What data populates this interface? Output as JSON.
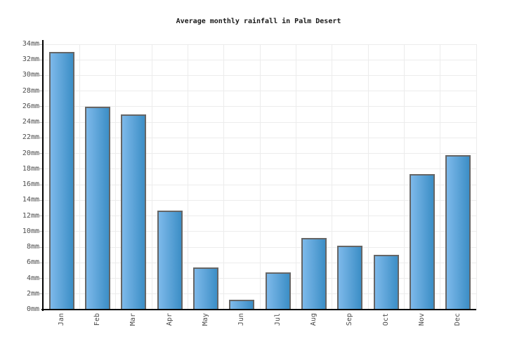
{
  "chart_data": {
    "type": "bar",
    "title": "Average monthly rainfall in Palm Desert",
    "categories": [
      "Jan",
      "Feb",
      "Mar",
      "Apr",
      "May",
      "Jun",
      "Jul",
      "Aug",
      "Sep",
      "Oct",
      "Nov",
      "Dec"
    ],
    "values": [
      33,
      26,
      25,
      12.7,
      5.4,
      1.3,
      4.8,
      9.2,
      8.2,
      7.0,
      17.4,
      19.8
    ],
    "unit": "mm",
    "xlabel": "",
    "ylabel": "",
    "ylim": [
      0,
      34
    ],
    "ytick_step": 2,
    "ytick_values": [
      0,
      2,
      4,
      6,
      8,
      10,
      12,
      14,
      16,
      18,
      20,
      22,
      24,
      26,
      28,
      30,
      32,
      34
    ],
    "ytick_labels": [
      "0mm",
      "2mm",
      "4mm",
      "6mm",
      "8mm",
      "10mm",
      "12mm",
      "14mm",
      "16mm",
      "18mm",
      "20mm",
      "22mm",
      "24mm",
      "26mm",
      "28mm",
      "30mm",
      "32mm",
      "34mm"
    ],
    "grid": true,
    "legend": false,
    "colors": {
      "bar_gradient_left": "#7db9ea",
      "bar_gradient_right": "#3c8ec6",
      "bar_border": "#666666",
      "axis": "#000000",
      "gridline": "#ececec",
      "tick_nub": "#bbbbbb",
      "tick_label": "#4d4d4d",
      "title": "#1a1a1a",
      "background": "#ffffff"
    }
  }
}
